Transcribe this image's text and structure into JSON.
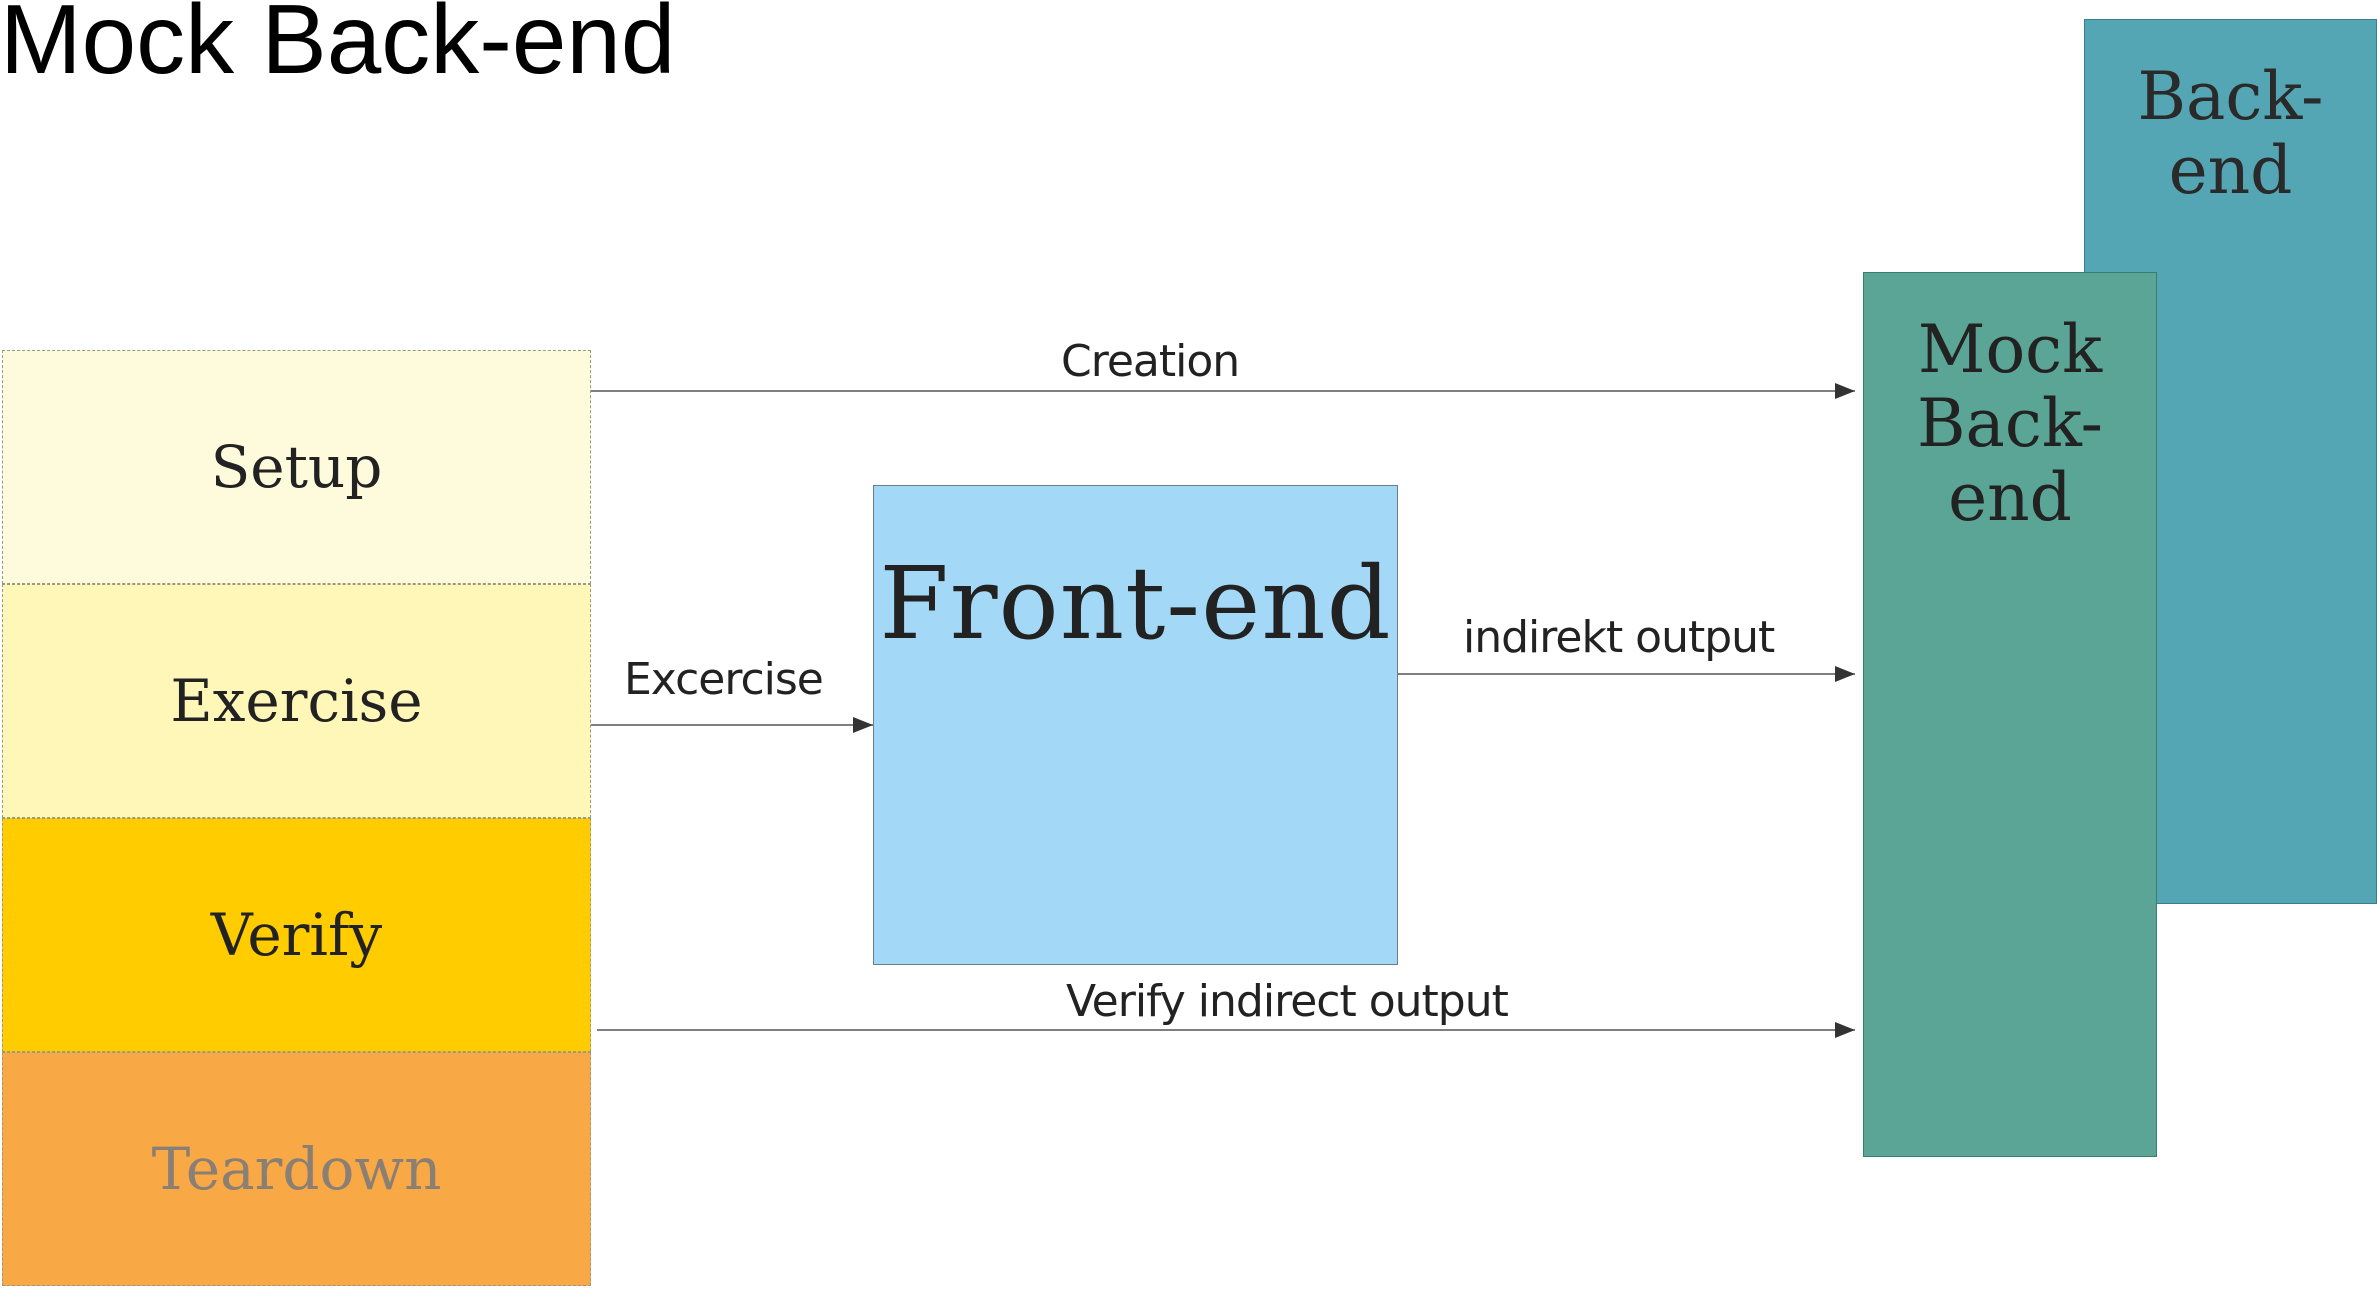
{
  "title": "Mock Back-end",
  "phases": [
    {
      "label": "Setup"
    },
    {
      "label": "Exercise"
    },
    {
      "label": "Verify"
    },
    {
      "label": "Teardown"
    }
  ],
  "frontend": {
    "label": "Front-end"
  },
  "mock_backend": {
    "lines": [
      "Mock",
      "Back-",
      "end"
    ]
  },
  "backend": {
    "lines": [
      "Back-",
      "end"
    ]
  },
  "arrows": {
    "creation": "Creation",
    "exercise": "Excercise",
    "indirect_output": "indirekt output",
    "verify_indirect_output": "Verify indirect output"
  },
  "colors": {
    "setup": "#fefadc",
    "exercise": "#fff7b8",
    "verify": "#ffcc00",
    "teardown": "#f8a845",
    "frontend": "#a3d8f6",
    "mock_backend": "#5aa595",
    "backend": "#54a6b4"
  }
}
